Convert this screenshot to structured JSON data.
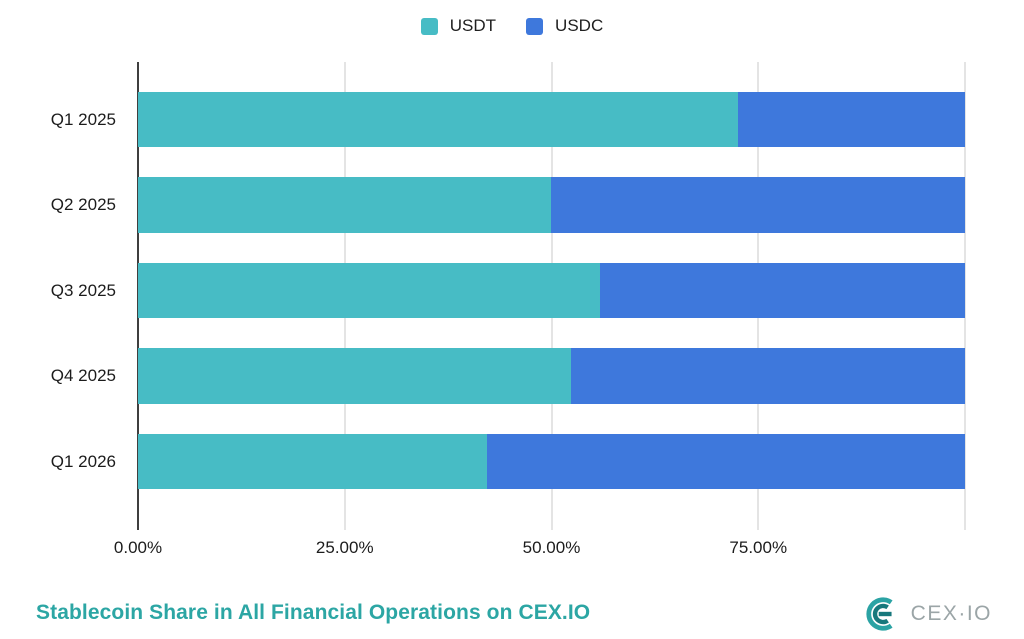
{
  "legend": {
    "items": [
      {
        "label": "USDT",
        "color": "#47BCC5"
      },
      {
        "label": "USDC",
        "color": "#3E78DC"
      }
    ]
  },
  "chart_data": {
    "type": "bar",
    "orientation": "horizontal",
    "stacked": true,
    "title": "Stablecoin Share in All Financial Operations on CEX.IO",
    "categories": [
      "Q1 2025",
      "Q2 2025",
      "Q3 2025",
      "Q4 2025",
      "Q1 2026"
    ],
    "series": [
      {
        "name": "USDT",
        "color": "#47BCC5",
        "values": [
          72.6,
          49.9,
          55.9,
          52.4,
          42.2
        ]
      },
      {
        "name": "USDC",
        "color": "#3E78DC",
        "values": [
          27.4,
          50.1,
          44.1,
          47.6,
          57.8
        ]
      }
    ],
    "xlim": [
      0,
      100
    ],
    "x_ticks": [
      {
        "value": 0,
        "label": "0.00%"
      },
      {
        "value": 25,
        "label": "25.00%"
      },
      {
        "value": 50,
        "label": "50.00%"
      },
      {
        "value": 75,
        "label": "75.00%"
      }
    ],
    "gridlines": [
      25,
      50,
      75,
      100
    ],
    "grid": true,
    "legend_position": "top"
  },
  "footer": {
    "title": "Stablecoin Share in All Financial Operations on CEX.IO",
    "logo_text": "CEX·IO"
  },
  "colors": {
    "usdt": "#47BCC5",
    "usdc": "#3E78DC",
    "title_text": "#2CA6A4",
    "axis": "#3F3F3F",
    "gridline": "#E4E4E4",
    "label_text": "#1C1C1C",
    "logo_text": "#9BA5A7",
    "logo_mark": "#2BA3A4",
    "logo_mark_dark": "#17787C"
  }
}
